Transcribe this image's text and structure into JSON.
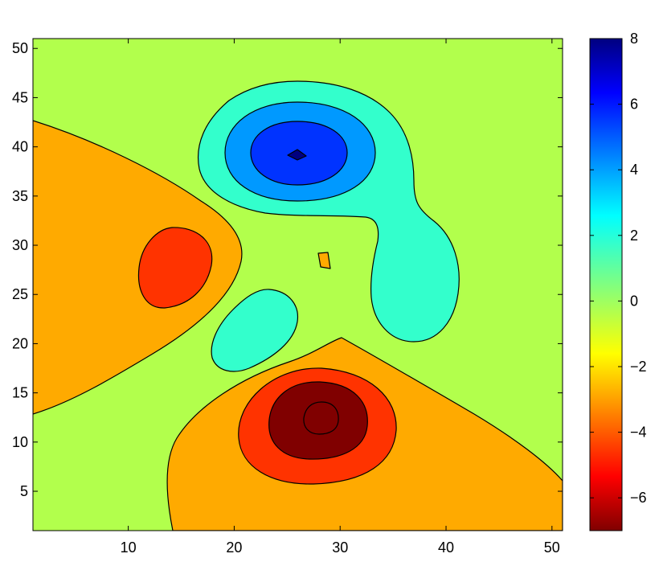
{
  "chart_data": {
    "type": "filled-contour",
    "title": "",
    "xlabel": "",
    "ylabel": "",
    "xlim": [
      1,
      51
    ],
    "ylim": [
      1,
      51
    ],
    "x_ticks": [
      10,
      20,
      30,
      40,
      50
    ],
    "y_ticks": [
      5,
      10,
      15,
      20,
      25,
      30,
      35,
      40,
      45,
      50
    ],
    "background_level_color": "#b2ff4c",
    "colormap": "jet",
    "colorbar": {
      "range": [
        -7,
        8
      ],
      "ticks": [
        -6,
        -4,
        -2,
        0,
        2,
        4,
        6,
        8
      ],
      "placement": "right"
    },
    "levels": [
      {
        "name": "level-plus2-to-plus4",
        "value_range": [
          1,
          3
        ],
        "color": "#33ffcc"
      },
      {
        "name": "level-plus4-to-plus6",
        "value_range": [
          3,
          5
        ],
        "color": "#0099ff"
      },
      {
        "name": "level-plus6-to-plus8",
        "value_range": [
          5,
          7
        ],
        "color": "#0033ff"
      },
      {
        "name": "level-peak",
        "value_range": [
          7,
          8
        ],
        "color": "#000080"
      },
      {
        "name": "level-minus2",
        "value_range": [
          -3,
          -1
        ],
        "color": "#ffaa00"
      },
      {
        "name": "level-minus4",
        "value_range": [
          -5,
          -3
        ],
        "color": "#ff3300"
      },
      {
        "name": "level-minus6",
        "value_range": [
          -7,
          -5
        ],
        "color": "#800000"
      }
    ],
    "regions": [
      {
        "name": "left-negative-lobe",
        "level": -2,
        "center": [
          8,
          27
        ]
      },
      {
        "name": "left-inner-lobe",
        "level": -4,
        "center": [
          14,
          28
        ]
      },
      {
        "name": "bottom-negative-lobe",
        "level": -2,
        "center": [
          33,
          9
        ]
      },
      {
        "name": "bottom-inner-lobe",
        "level": -4,
        "center": [
          28,
          12
        ]
      },
      {
        "name": "bottom-core",
        "level": -6,
        "center": [
          28,
          12
        ]
      },
      {
        "name": "small-negative-spot",
        "level": -2,
        "center": [
          28,
          28
        ]
      },
      {
        "name": "upper-positive-lobe",
        "level": 2,
        "center": [
          30,
          35
        ]
      },
      {
        "name": "upper-mid-lobe",
        "level": 4,
        "center": [
          27,
          39
        ]
      },
      {
        "name": "upper-inner-lobe",
        "level": 6,
        "center": [
          27,
          39
        ]
      },
      {
        "name": "upper-peak",
        "level": 8,
        "center": [
          26,
          39
        ]
      },
      {
        "name": "center-positive-lobe",
        "level": 2,
        "center": [
          22,
          21
        ]
      }
    ]
  }
}
